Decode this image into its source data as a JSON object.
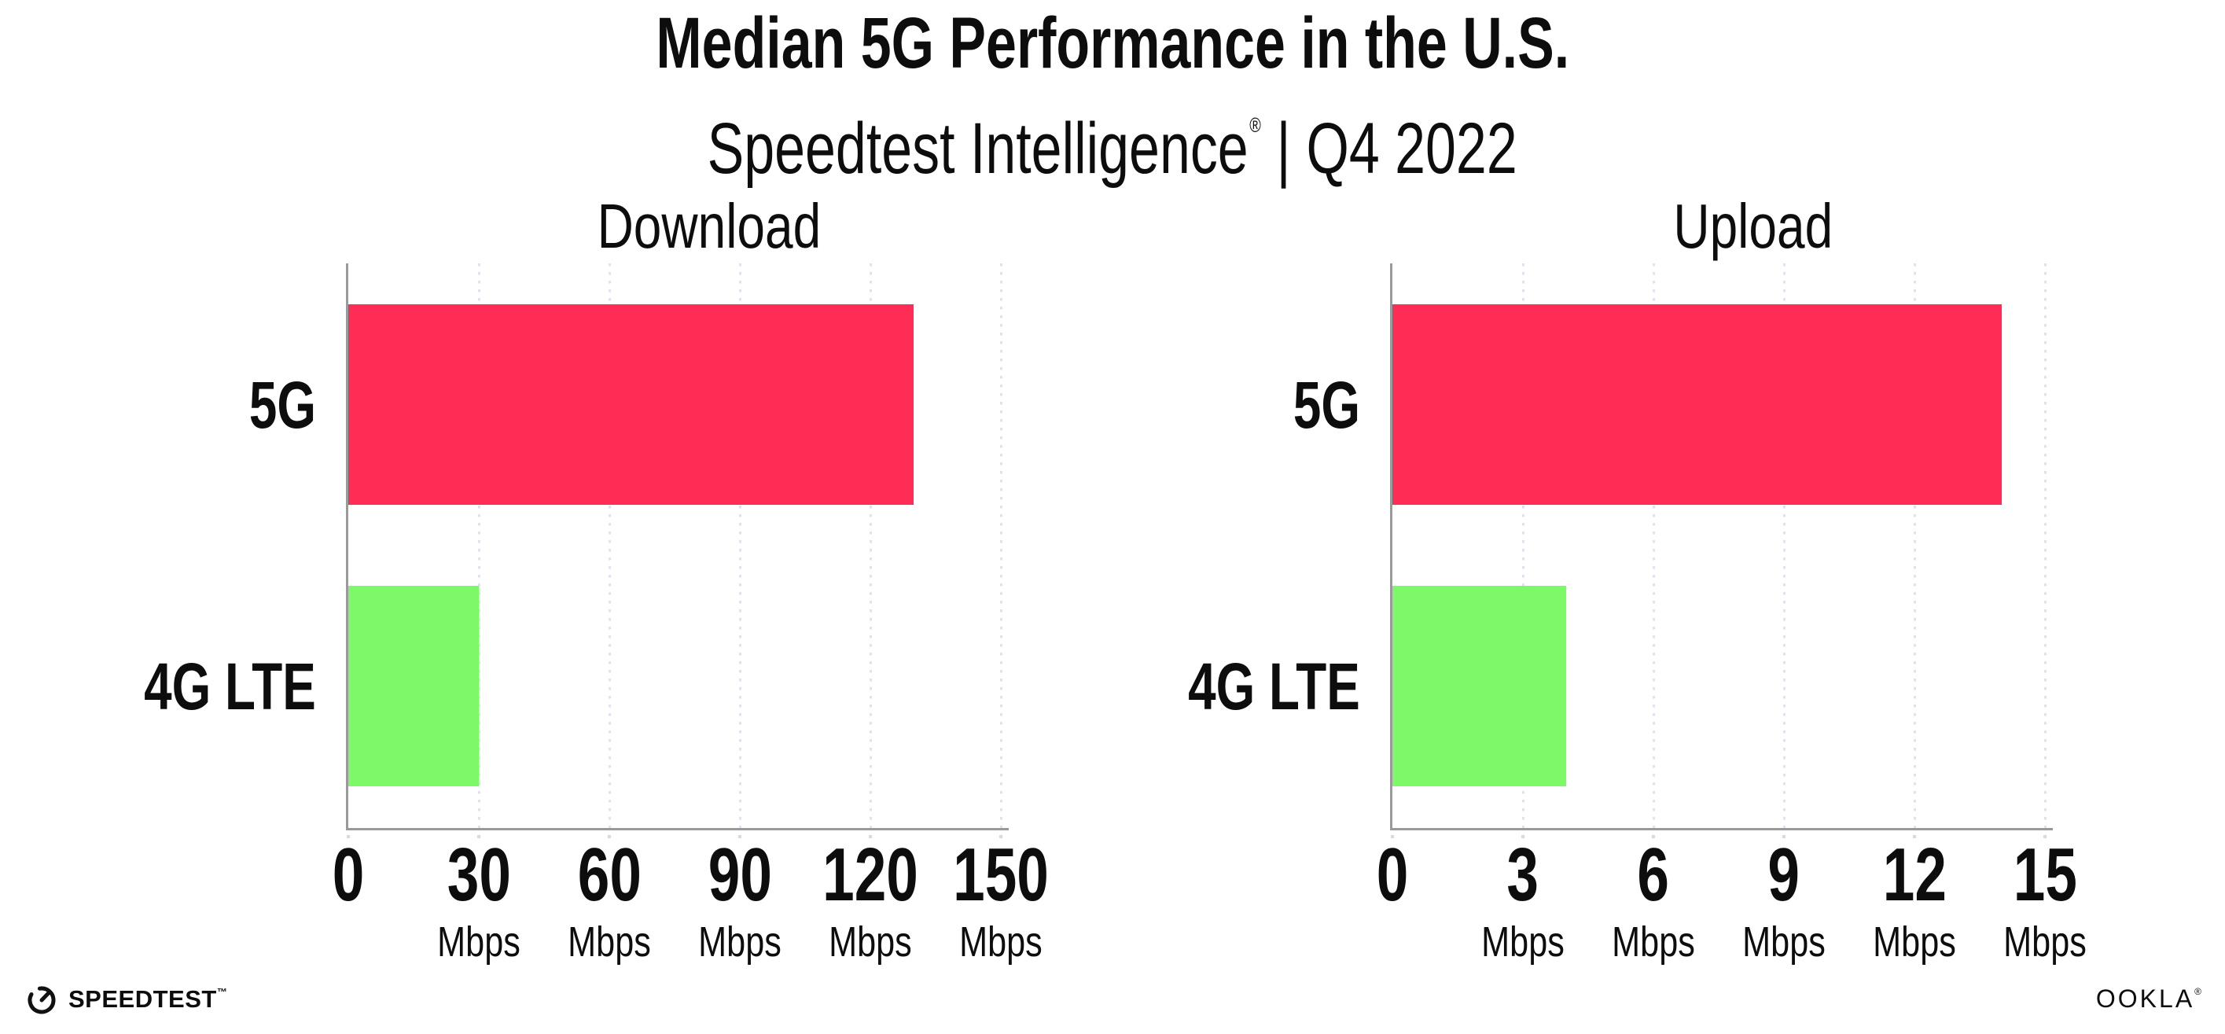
{
  "header": {
    "title": "Median 5G Performance in the U.S.",
    "subtitle_brand": "Speedtest Intelligence",
    "subtitle_reg": "®",
    "subtitle_sep": "|",
    "subtitle_period": "Q4 2022"
  },
  "chart_data": [
    {
      "type": "bar",
      "orientation": "horizontal",
      "title": "Download",
      "categories": [
        "5G",
        "4G LTE"
      ],
      "values": [
        130,
        30
      ],
      "unit": "Mbps",
      "xlim": [
        0,
        150
      ],
      "xticks": [
        0,
        30,
        60,
        90,
        120,
        150
      ],
      "tick_unit": "Mbps",
      "bar_colors": [
        "#FF2D55",
        "#7DF869"
      ],
      "grid": "dotted-vertical",
      "legend": "none"
    },
    {
      "type": "bar",
      "orientation": "horizontal",
      "title": "Upload",
      "categories": [
        "5G",
        "4G LTE"
      ],
      "values": [
        14,
        4
      ],
      "unit": "Mbps",
      "xlim": [
        0,
        15
      ],
      "xticks": [
        0,
        3,
        6,
        9,
        12,
        15
      ],
      "tick_unit": "Mbps",
      "bar_colors": [
        "#FF2D55",
        "#7DF869"
      ],
      "grid": "dotted-vertical",
      "legend": "none"
    }
  ],
  "footer": {
    "speedtest_label": "SPEEDTEST",
    "speedtest_tm": "™",
    "speedtest_icon": "speedtest-gauge-icon",
    "ookla_label": "OOKLA",
    "ookla_reg": "®"
  },
  "colors": {
    "bar_5g": "#FF2D55",
    "bar_4g_lte": "#7DF869",
    "axis_line": "#9A9A9A",
    "gridline_dots": "#E2E2EC",
    "tick_dots": "#D9D9E3",
    "text": "#0D0D0D"
  }
}
